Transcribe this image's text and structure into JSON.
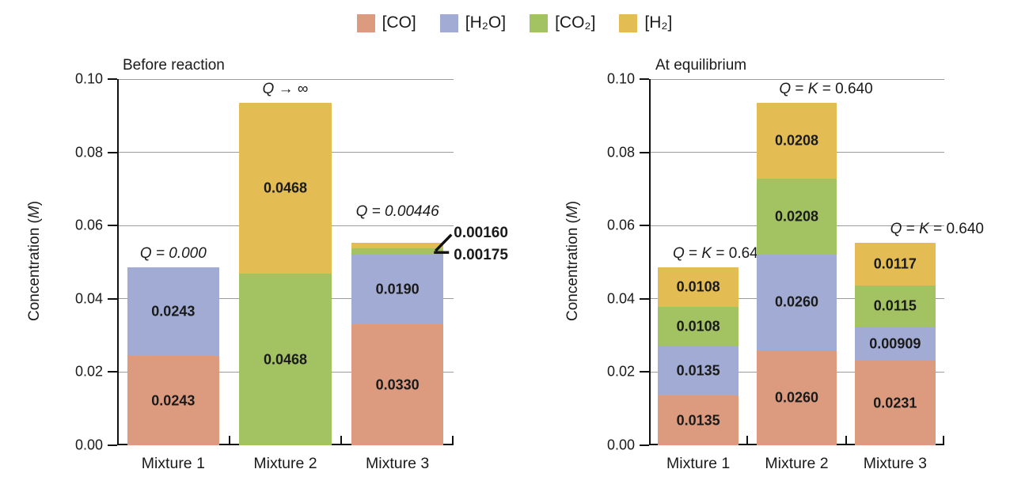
{
  "legend": {
    "items": [
      {
        "key": "co",
        "label": "[CO]",
        "color": "#dc9b7f"
      },
      {
        "key": "h2o",
        "label": "[H₂O]",
        "color": "#a1abd3"
      },
      {
        "key": "co2",
        "label": "[CO₂]",
        "color": "#a3c262"
      },
      {
        "key": "h2",
        "label": "[H₂]",
        "color": "#e3bd54"
      }
    ]
  },
  "chart_data": {
    "type": "bar",
    "stacked": true,
    "grid": true,
    "legend_position": "top",
    "ylim": [
      0,
      0.1
    ],
    "ytick_step": 0.02,
    "yticks": [
      "0.00",
      "0.02",
      "0.04",
      "0.06",
      "0.08",
      "0.10"
    ],
    "series_order_bottom_to_top": [
      "[CO]",
      "[H₂O]",
      "[CO₂]",
      "[H₂]"
    ],
    "panels": [
      {
        "title": "Before reaction",
        "ylabel": {
          "pre": "Concentration (",
          "italic": "M",
          "post": ")"
        },
        "categories": [
          "Mixture 1",
          "Mixture 2",
          "Mixture 3"
        ],
        "bars": [
          {
            "annotation": [
              {
                "t": "Q = 0.000",
                "i": true
              }
            ],
            "segments": [
              {
                "series": "[CO]",
                "value": 0.0243,
                "label": "0.0243"
              },
              {
                "series": "[H₂O]",
                "value": 0.0243,
                "label": "0.0243"
              }
            ]
          },
          {
            "annotation": [
              {
                "t": "Q",
                "i": true
              },
              {
                "t": " → ∞",
                "i": false
              }
            ],
            "segments": [
              {
                "series": "[CO₂]",
                "value": 0.0468,
                "label": "0.0468"
              },
              {
                "series": "[H₂]",
                "value": 0.0468,
                "label": "0.0468"
              }
            ]
          },
          {
            "annotation": [
              {
                "t": "Q = 0.00446",
                "i": true
              }
            ],
            "segments": [
              {
                "series": "[CO]",
                "value": 0.033,
                "label": "0.0330"
              },
              {
                "series": "[H₂O]",
                "value": 0.019,
                "label": "0.0190"
              },
              {
                "series": "[CO₂]",
                "value": 0.00175,
                "label": "0.00175",
                "callout": true
              },
              {
                "series": "[H₂]",
                "value": 0.0016,
                "label": "0.00160",
                "callout": true
              }
            ]
          }
        ]
      },
      {
        "title": "At equilibrium",
        "ylabel": {
          "pre": "Concentration (",
          "italic": "M",
          "post": ")"
        },
        "categories": [
          "Mixture 1",
          "Mixture 2",
          "Mixture 3"
        ],
        "bars": [
          {
            "annotation": [
              {
                "t": "Q",
                "i": true
              },
              {
                "t": " = ",
                "i": false
              },
              {
                "t": "K",
                "i": true
              },
              {
                "t": " = 0.640",
                "i": false
              }
            ],
            "segments": [
              {
                "series": "[CO]",
                "value": 0.0135,
                "label": "0.0135"
              },
              {
                "series": "[H₂O]",
                "value": 0.0135,
                "label": "0.0135"
              },
              {
                "series": "[CO₂]",
                "value": 0.0108,
                "label": "0.0108"
              },
              {
                "series": "[H₂]",
                "value": 0.0108,
                "label": "0.0108"
              }
            ]
          },
          {
            "annotation": [
              {
                "t": "Q",
                "i": true
              },
              {
                "t": " = ",
                "i": false
              },
              {
                "t": "K",
                "i": true
              },
              {
                "t": " = 0.640",
                "i": false
              }
            ],
            "segments": [
              {
                "series": "[CO]",
                "value": 0.026,
                "label": "0.0260"
              },
              {
                "series": "[H₂O]",
                "value": 0.026,
                "label": "0.0260"
              },
              {
                "series": "[CO₂]",
                "value": 0.0208,
                "label": "0.0208"
              },
              {
                "series": "[H₂]",
                "value": 0.0208,
                "label": "0.0208"
              }
            ]
          },
          {
            "annotation": [
              {
                "t": "Q",
                "i": true
              },
              {
                "t": " = ",
                "i": false
              },
              {
                "t": "K",
                "i": true
              },
              {
                "t": " = 0.640",
                "i": false
              }
            ],
            "segments": [
              {
                "series": "[CO]",
                "value": 0.0231,
                "label": "0.0231"
              },
              {
                "series": "[H₂O]",
                "value": 0.00909,
                "label": "0.00909"
              },
              {
                "series": "[CO₂]",
                "value": 0.0115,
                "label": "0.0115"
              },
              {
                "series": "[H₂]",
                "value": 0.0117,
                "label": "0.0117"
              }
            ]
          }
        ]
      }
    ]
  }
}
